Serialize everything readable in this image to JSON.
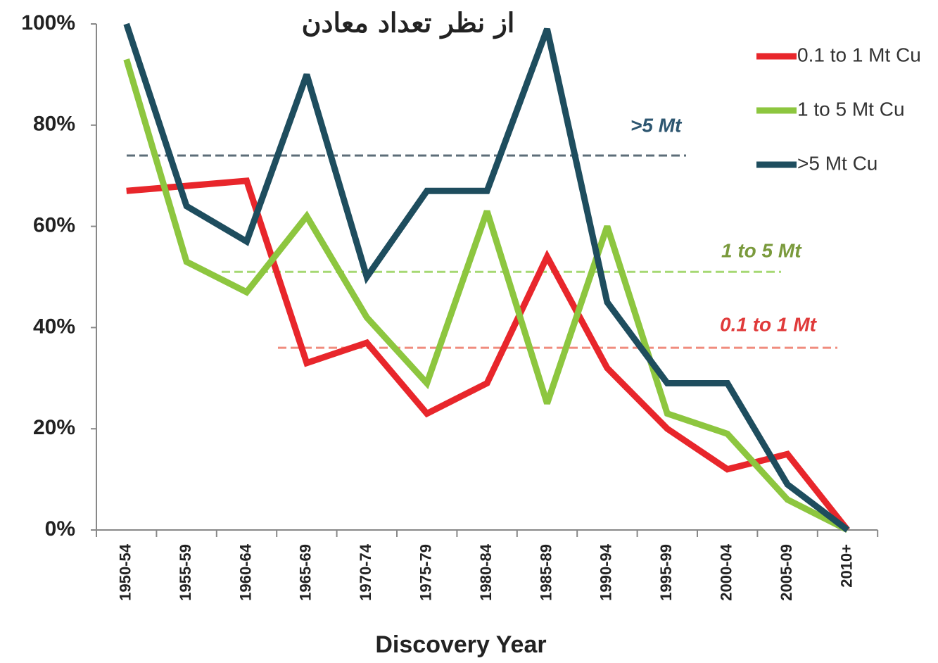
{
  "chart_data": {
    "type": "line",
    "title": "از نظر تعداد معادن",
    "x_label": "Discovery Year",
    "categories": [
      "1950-54",
      "1955-59",
      "1960-64",
      "1965-69",
      "1970-74",
      "1975-79",
      "1980-84",
      "1985-89",
      "1990-94",
      "1995-99",
      "2000-04",
      "2005-09",
      "2010+"
    ],
    "series": [
      {
        "name": "0.1 to 1 Mt Cu",
        "color": "#e8262b",
        "values": [
          67,
          68,
          69,
          33,
          37,
          23,
          29,
          54,
          32,
          20,
          12,
          15,
          0
        ]
      },
      {
        "name": "1 to 5 Mt Cu",
        "color": "#8dc63f",
        "values": [
          93,
          53,
          47,
          62,
          42,
          29,
          63,
          25,
          60,
          23,
          19,
          6,
          0
        ]
      },
      {
        "name": ">5 Mt Cu",
        "color": "#1e4d5e",
        "values": [
          100,
          64,
          57,
          90,
          50,
          67,
          67,
          99,
          45,
          29,
          29,
          9,
          0
        ]
      }
    ],
    "ref_lines": [
      {
        "label": ">5  Mt",
        "value": 74,
        "color": "#5c6d78",
        "text_color": "#2d5670"
      },
      {
        "label": "1 to 5 Mt",
        "value": 51,
        "color": "#a6d873",
        "text_color": "#7a9a3c"
      },
      {
        "label": "0.1 to 1 Mt",
        "value": 36,
        "color": "#f08c7e",
        "text_color": "#e03a3a"
      }
    ],
    "ylim": [
      0,
      100
    ],
    "yticks": [
      {
        "value": 0,
        "label": "0%"
      },
      {
        "value": 20,
        "label": "20%"
      },
      {
        "value": 40,
        "label": "40%"
      },
      {
        "value": 60,
        "label": "60%"
      },
      {
        "value": 80,
        "label": "80%"
      },
      {
        "value": 100,
        "label": "100%"
      }
    ],
    "legend": "upper right"
  }
}
